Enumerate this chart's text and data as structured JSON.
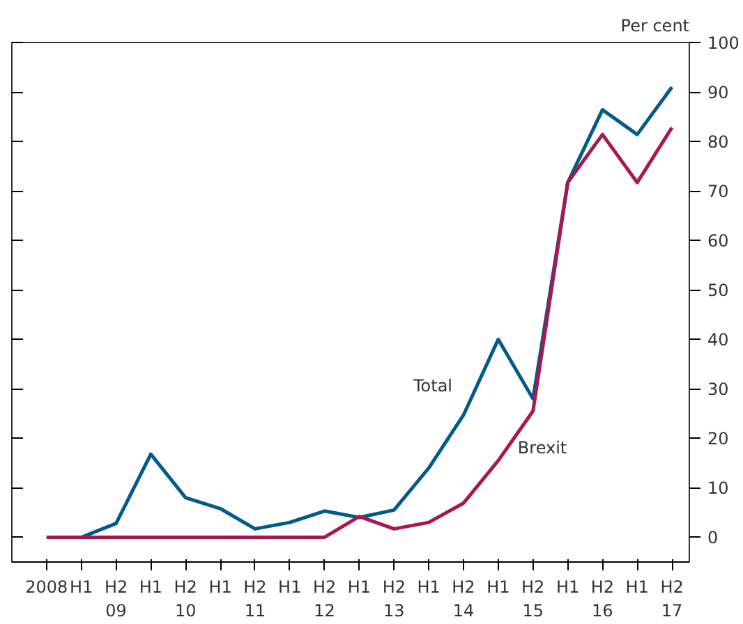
{
  "chart_data": {
    "type": "line",
    "ylabel": "Per cent",
    "categories": [
      "2008",
      "H1",
      "H2\n09",
      "H1",
      "H2\n10",
      "H1",
      "H2\n11",
      "H1",
      "H2\n12",
      "H1",
      "H2\n13",
      "H1",
      "H2\n14",
      "H1",
      "H2\n15",
      "H1",
      "H2\n16",
      "H1",
      "H2\n17"
    ],
    "series": [
      {
        "name": "Total",
        "color": "#005a8c",
        "values": [
          0,
          0,
          2.8,
          16.8,
          8,
          5.8,
          1.7,
          3,
          5.3,
          4,
          5.5,
          14,
          24.7,
          40,
          28,
          71.7,
          86.4,
          81.4,
          91
        ]
      },
      {
        "name": "Brexit",
        "color": "#a8174f",
        "values": [
          0,
          0,
          0,
          0,
          0,
          0,
          0,
          0,
          0,
          4.2,
          1.7,
          3,
          6.9,
          15.5,
          25.5,
          71.7,
          81.4,
          71.7,
          82.8
        ]
      }
    ],
    "ylim": [
      -5,
      100
    ],
    "yticks": [
      0,
      10,
      20,
      30,
      40,
      50,
      60,
      70,
      80,
      90,
      100
    ],
    "grid": false,
    "legend": false,
    "marker": "none",
    "line_style": "solid"
  }
}
